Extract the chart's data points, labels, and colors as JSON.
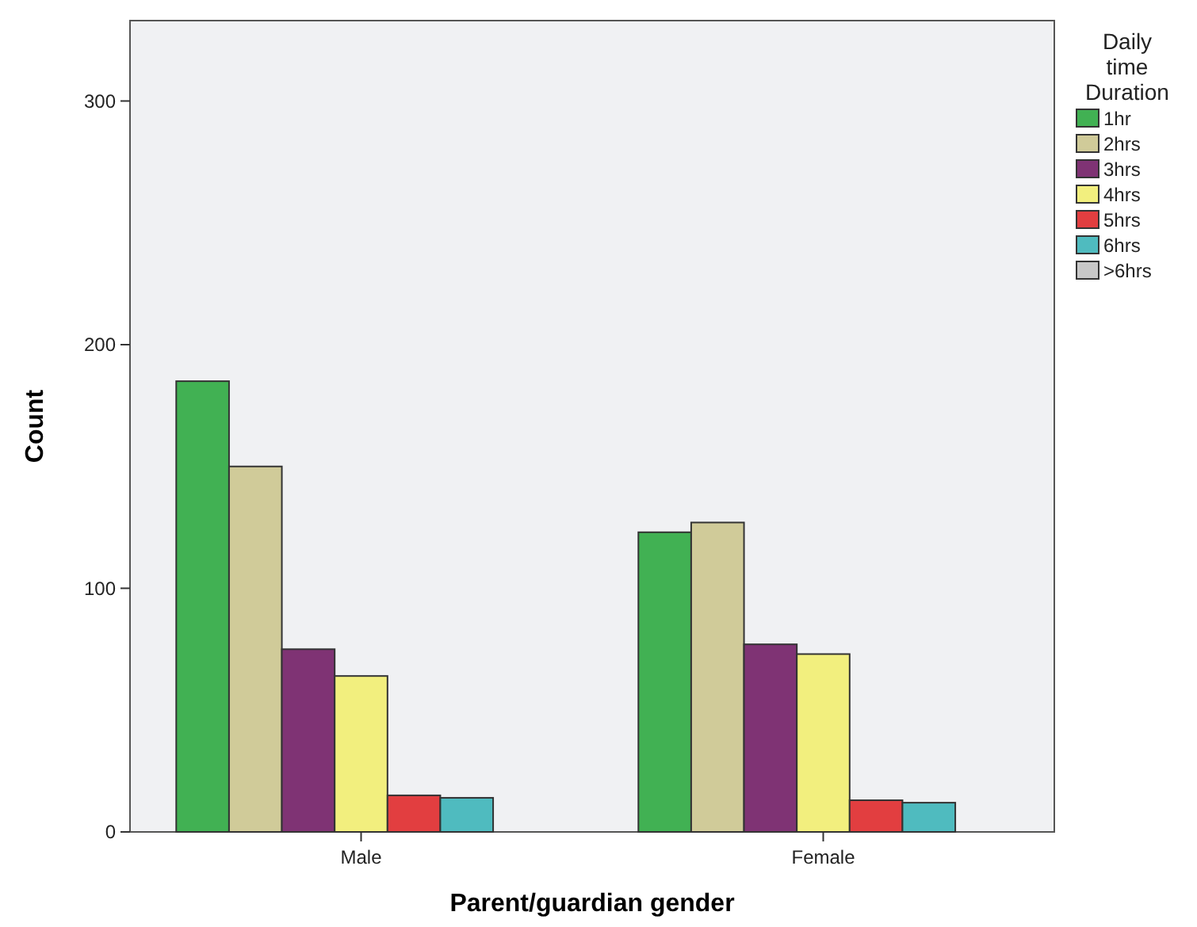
{
  "chart_data": {
    "type": "bar",
    "xlabel": "Parent/guardian gender",
    "ylabel": "Count",
    "legend_title": "Daily time Duration",
    "categories": [
      "Male",
      "Female"
    ],
    "series": [
      {
        "name": "1hr",
        "color": "#41b153",
        "values": [
          185,
          123
        ]
      },
      {
        "name": "2hrs",
        "color": "#d0cb99",
        "values": [
          150,
          127
        ]
      },
      {
        "name": "3hrs",
        "color": "#7f3374",
        "values": [
          75,
          77
        ]
      },
      {
        "name": "4hrs",
        "color": "#f2ef7e",
        "values": [
          64,
          73
        ]
      },
      {
        "name": "5hrs",
        "color": "#e23e40",
        "values": [
          15,
          13
        ]
      },
      {
        "name": "6hrs",
        "color": "#4fbbbf",
        "values": [
          14,
          12
        ]
      },
      {
        "name": ">6hrs",
        "color": "#c8c8c8",
        "values": [
          null,
          null
        ]
      }
    ],
    "ylim": [
      0,
      333
    ],
    "yticks": [
      0,
      100,
      200,
      300
    ],
    "grid": false,
    "legend": "right"
  }
}
